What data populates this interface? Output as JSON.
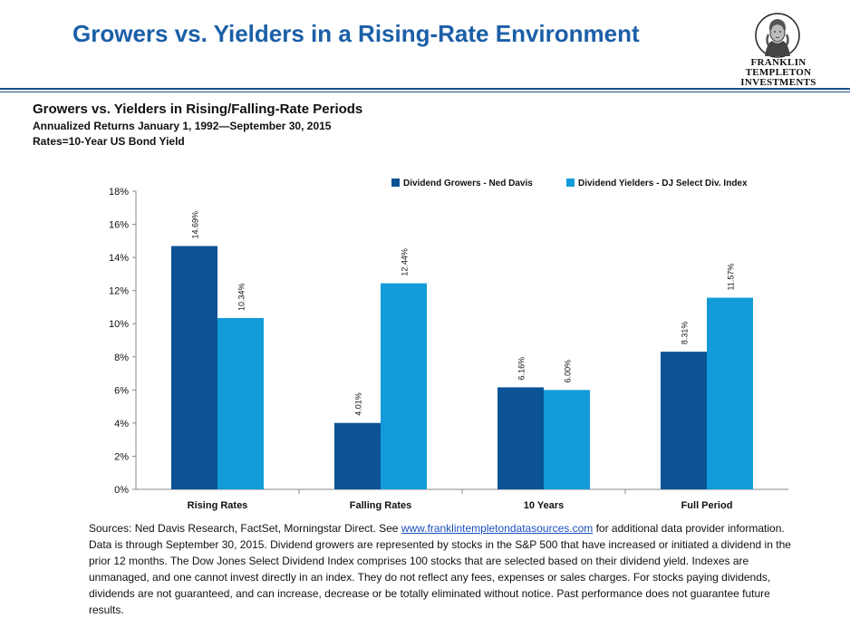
{
  "header": {
    "title": "Growers vs. Yielders in a Rising-Rate Environment",
    "logo_line1": "FRANKLIN TEMPLETON",
    "logo_line2": "INVESTMENTS"
  },
  "chart_block": {
    "title": "Growers vs. Yielders in Rising/Falling-Rate Periods",
    "subtitle1": "Annualized Returns January 1, 1992—September 30, 2015",
    "subtitle2": "Rates=10-Year  US Bond Yield"
  },
  "chart_data": {
    "type": "bar",
    "categories": [
      "Rising Rates",
      "Falling Rates",
      "10 Years",
      "Full Period"
    ],
    "series": [
      {
        "name": "Dividend Growers - Ned Davis",
        "values": [
          14.69,
          4.01,
          6.16,
          8.31
        ],
        "labels": [
          "14.69%",
          "4.01%",
          "6.16%",
          "8.31%"
        ],
        "color": "#0b5394"
      },
      {
        "name": "Dividend Yielders - DJ Select Div. Index",
        "values": [
          10.34,
          12.44,
          6.0,
          11.57
        ],
        "labels": [
          "10.34%",
          "12.44%",
          "6.00%",
          "11.57%"
        ],
        "color": "#129bd8"
      }
    ],
    "yticks": [
      "0%",
      "2%",
      "4%",
      "6%",
      "8%",
      "10%",
      "12%",
      "14%",
      "16%",
      "18%"
    ],
    "ylim": [
      0,
      18
    ],
    "legend_position": "top-right",
    "grid": false
  },
  "footnote": {
    "pre_link": "Sources: Ned Davis Research, FactSet, Morningstar Direct. See ",
    "link": "www.franklintempletondatasources.com",
    "post_link": " for additional data provider information. Data is through September 30, 2015. Dividend growers are represented by stocks in the S&P 500 that  have increased or initiated a dividend in the prior 12 months. The Dow Jones Select Dividend Index comprises 100 stocks that are selected based on their dividend yield. Indexes are unmanaged, and one cannot invest directly in an index. They do not reflect any fees, expenses or sales charges. For stocks paying dividends, dividends are not guaranteed, and can increase, decrease or be totally eliminated without notice. Past performance does not guarantee future results."
  }
}
